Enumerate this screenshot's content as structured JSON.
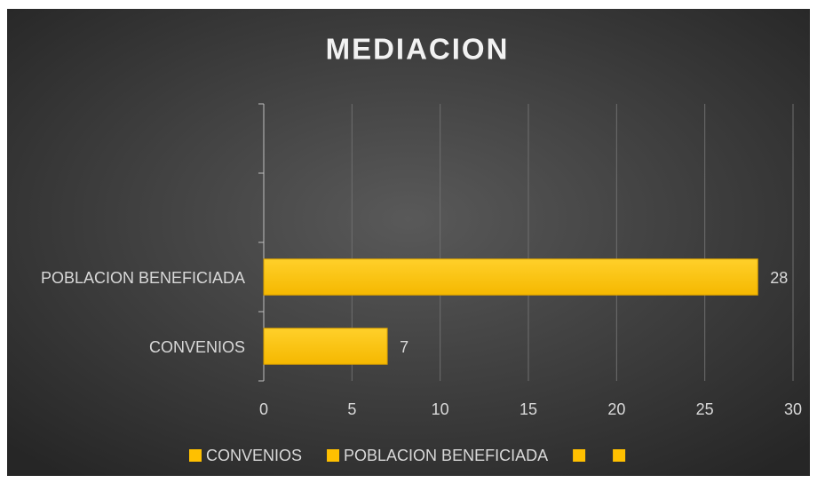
{
  "chart_data": {
    "type": "bar",
    "orientation": "horizontal",
    "title": "MEDIACION",
    "categories": [
      "CONVENIOS",
      "POBLACION BENEFICIADA",
      null,
      null
    ],
    "values": [
      7,
      28,
      null,
      null
    ],
    "color": "#ffc000",
    "xlim": [
      0,
      30
    ],
    "xticks": [
      0,
      5,
      10,
      15,
      20,
      25,
      30
    ],
    "grid": true,
    "legend": "bottom"
  }
}
